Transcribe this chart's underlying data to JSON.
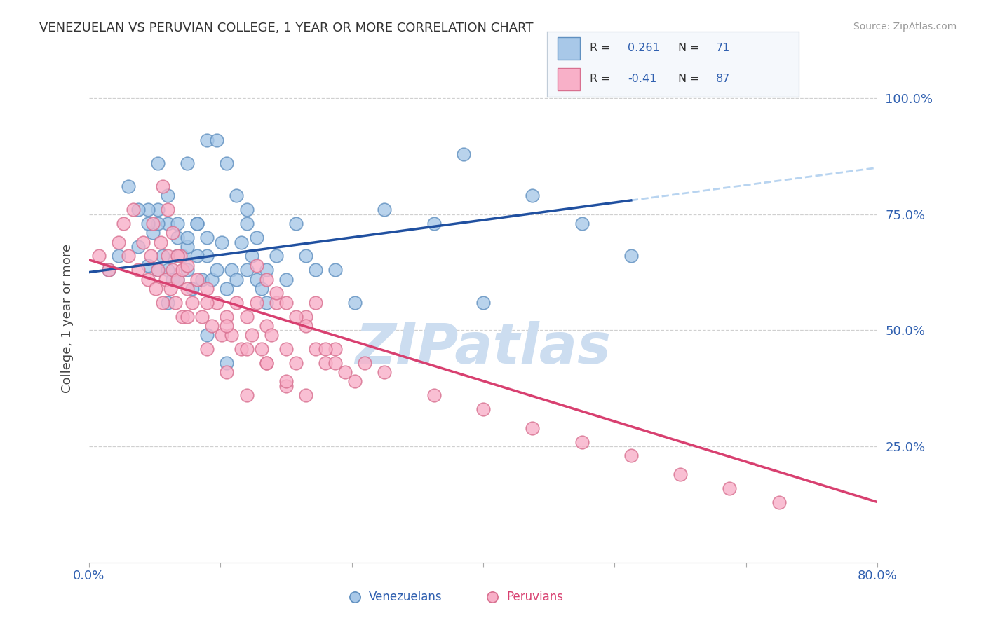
{
  "title": "VENEZUELAN VS PERUVIAN COLLEGE, 1 YEAR OR MORE CORRELATION CHART",
  "source": "Source: ZipAtlas.com",
  "ylabel": "College, 1 year or more",
  "xlim": [
    0.0,
    0.8
  ],
  "ylim": [
    0.0,
    1.05
  ],
  "ytick_positions": [
    0.25,
    0.5,
    0.75,
    1.0
  ],
  "ytick_labels": [
    "25.0%",
    "50.0%",
    "75.0%",
    "100.0%"
  ],
  "xtick_positions": [
    0.0,
    0.1333,
    0.2667,
    0.4,
    0.5333,
    0.6667,
    0.8
  ],
  "venezuelan_color": "#a8c8e8",
  "venezuelan_edge_color": "#6090c0",
  "peruvian_color": "#f8b0c8",
  "peruvian_edge_color": "#d87090",
  "venezuelan_line_color": "#2050a0",
  "peruvian_line_color": "#d84070",
  "trend_dash_color": "#b8d4f0",
  "R_venezuelan": 0.261,
  "N_venezuelan": 71,
  "R_peruvian": -0.41,
  "N_peruvian": 87,
  "watermark_zip": "ZIP",
  "watermark_atlas": "atlas",
  "watermark_color": "#ccddf0",
  "venezuelan_x": [
    0.02,
    0.03,
    0.04,
    0.05,
    0.06,
    0.065,
    0.07,
    0.075,
    0.08,
    0.085,
    0.09,
    0.095,
    0.1,
    0.105,
    0.11,
    0.115,
    0.12,
    0.125,
    0.13,
    0.135,
    0.14,
    0.145,
    0.15,
    0.155,
    0.16,
    0.165,
    0.17,
    0.175,
    0.18,
    0.19,
    0.2,
    0.21,
    0.22,
    0.23,
    0.25,
    0.27,
    0.3,
    0.35,
    0.38,
    0.4,
    0.45,
    0.5,
    0.55,
    0.07,
    0.08,
    0.09,
    0.1,
    0.11,
    0.12,
    0.13,
    0.14,
    0.15,
    0.16,
    0.17,
    0.18,
    0.06,
    0.07,
    0.08,
    0.09,
    0.1,
    0.11,
    0.12,
    0.05,
    0.06,
    0.07,
    0.08,
    0.09,
    0.1,
    0.12,
    0.14,
    0.16
  ],
  "venezuelan_y": [
    0.63,
    0.66,
    0.81,
    0.68,
    0.64,
    0.71,
    0.63,
    0.66,
    0.63,
    0.61,
    0.61,
    0.66,
    0.63,
    0.59,
    0.73,
    0.61,
    0.66,
    0.61,
    0.63,
    0.69,
    0.59,
    0.63,
    0.61,
    0.69,
    0.63,
    0.66,
    0.61,
    0.59,
    0.63,
    0.66,
    0.61,
    0.73,
    0.66,
    0.63,
    0.63,
    0.56,
    0.76,
    0.73,
    0.88,
    0.56,
    0.79,
    0.73,
    0.66,
    0.76,
    0.73,
    0.7,
    0.68,
    0.66,
    0.91,
    0.91,
    0.86,
    0.79,
    0.73,
    0.7,
    0.56,
    0.76,
    0.73,
    0.56,
    0.66,
    0.86,
    0.73,
    0.7,
    0.76,
    0.73,
    0.86,
    0.79,
    0.73,
    0.7,
    0.49,
    0.43,
    0.76
  ],
  "peruvian_x": [
    0.01,
    0.02,
    0.03,
    0.035,
    0.04,
    0.045,
    0.05,
    0.055,
    0.06,
    0.063,
    0.065,
    0.068,
    0.07,
    0.073,
    0.075,
    0.078,
    0.08,
    0.083,
    0.085,
    0.088,
    0.09,
    0.093,
    0.095,
    0.1,
    0.105,
    0.11,
    0.115,
    0.12,
    0.125,
    0.13,
    0.135,
    0.14,
    0.145,
    0.15,
    0.155,
    0.16,
    0.165,
    0.17,
    0.175,
    0.18,
    0.185,
    0.19,
    0.2,
    0.21,
    0.22,
    0.23,
    0.24,
    0.25,
    0.26,
    0.27,
    0.28,
    0.17,
    0.18,
    0.19,
    0.2,
    0.21,
    0.22,
    0.23,
    0.24,
    0.25,
    0.3,
    0.35,
    0.4,
    0.45,
    0.5,
    0.55,
    0.6,
    0.65,
    0.7,
    0.075,
    0.08,
    0.085,
    0.09,
    0.095,
    0.1,
    0.12,
    0.14,
    0.16,
    0.18,
    0.2,
    0.22,
    0.1,
    0.12,
    0.14,
    0.16,
    0.18,
    0.2
  ],
  "peruvian_y": [
    0.66,
    0.63,
    0.69,
    0.73,
    0.66,
    0.76,
    0.63,
    0.69,
    0.61,
    0.66,
    0.73,
    0.59,
    0.63,
    0.69,
    0.56,
    0.61,
    0.66,
    0.59,
    0.63,
    0.56,
    0.61,
    0.66,
    0.53,
    0.59,
    0.56,
    0.61,
    0.53,
    0.59,
    0.51,
    0.56,
    0.49,
    0.53,
    0.49,
    0.56,
    0.46,
    0.53,
    0.49,
    0.56,
    0.46,
    0.51,
    0.49,
    0.56,
    0.46,
    0.43,
    0.53,
    0.46,
    0.43,
    0.46,
    0.41,
    0.39,
    0.43,
    0.64,
    0.61,
    0.58,
    0.56,
    0.53,
    0.51,
    0.56,
    0.46,
    0.43,
    0.41,
    0.36,
    0.33,
    0.29,
    0.26,
    0.23,
    0.19,
    0.16,
    0.13,
    0.81,
    0.76,
    0.71,
    0.66,
    0.63,
    0.53,
    0.46,
    0.41,
    0.36,
    0.43,
    0.38,
    0.36,
    0.64,
    0.56,
    0.51,
    0.46,
    0.43,
    0.39
  ]
}
